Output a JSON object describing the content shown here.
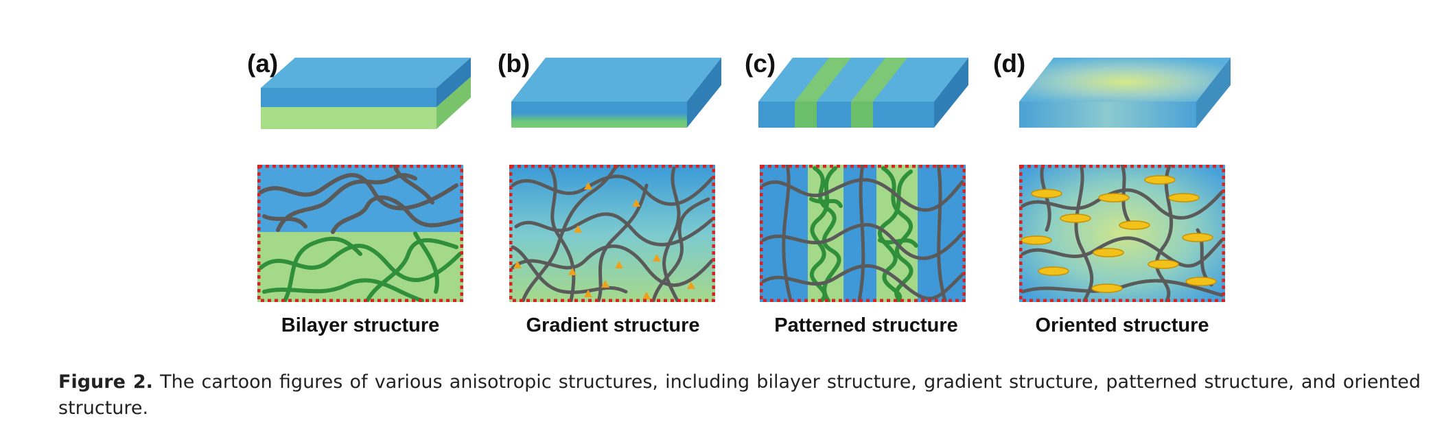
{
  "panels": [
    {
      "label": "(a)",
      "caption": "Bilayer structure"
    },
    {
      "label": "(b)",
      "caption": "Gradient structure"
    },
    {
      "label": "(c)",
      "caption": "Patterned structure"
    },
    {
      "label": "(d)",
      "caption": "Oriented structure"
    }
  ],
  "figure": {
    "number": "Figure 2.",
    "text": " The cartoon figures of various anisotropic structures, including bilayer structure, gradient structure, patterned structure, and oriented structure."
  },
  "colors": {
    "blue_top": "#5ab0dc",
    "blue_front": "#3f98cf",
    "blue_side": "#2f7fb6",
    "green": "#7cc876",
    "green_dark": "#2f8f3a",
    "chain_gray": "#5a5a5a",
    "dots_red": "#d92222",
    "ellipse_yellow": "#f2c21a",
    "crosslink_orange": "#f0a018"
  }
}
